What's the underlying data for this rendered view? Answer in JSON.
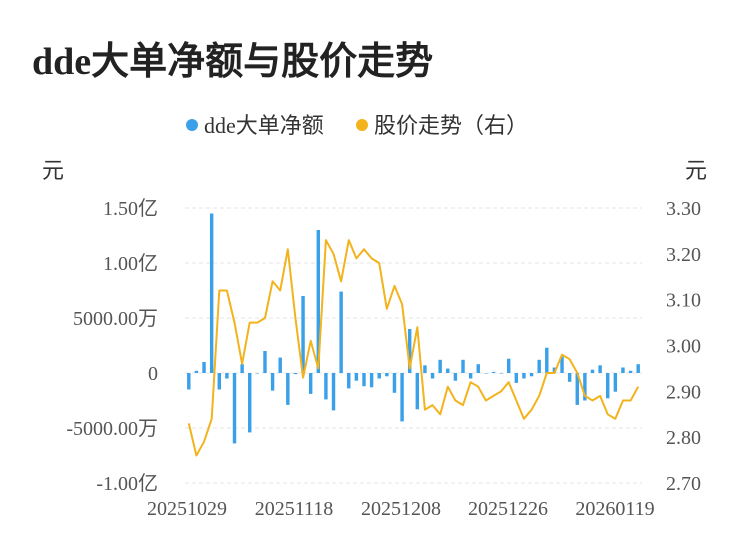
{
  "title": "dde大单净额与股价走势",
  "chart_data": {
    "type": "bar+line",
    "legend": [
      {
        "name": "dde大单净额",
        "color": "#3aa0e8"
      },
      {
        "name": "股价走势（右）",
        "color": "#f2b31c"
      }
    ],
    "left_axis": {
      "unit": "元",
      "ticks": [
        "1.50亿",
        "1.00亿",
        "5000.00万",
        "0",
        "-5000.00万",
        "-1.00亿"
      ],
      "range": [
        -100000000,
        150000000
      ]
    },
    "right_axis": {
      "unit": "元",
      "ticks": [
        "3.30",
        "3.20",
        "3.10",
        "3.00",
        "2.90",
        "2.80",
        "2.70"
      ],
      "range": [
        2.7,
        3.3
      ]
    },
    "x_ticks": [
      "20251029",
      "20251118",
      "20251208",
      "20251226",
      "20260119"
    ],
    "grid": true,
    "bar_values": [
      -15000000,
      2000000,
      10000000,
      145000000,
      -15000000,
      -5000000,
      -64000000,
      8000000,
      -54000000,
      0,
      20000000,
      -16000000,
      14000000,
      -29000000,
      -1000000,
      70000000,
      -19000000,
      130000000,
      -24000000,
      -34000000,
      74000000,
      -14000000,
      -7000000,
      -12000000,
      -13000000,
      -5000000,
      -3000000,
      -18000000,
      -44000000,
      40000000,
      -33000000,
      7000000,
      -5000000,
      12000000,
      4000000,
      -7000000,
      12000000,
      -5000000,
      8000000,
      0,
      1000000,
      0,
      13000000,
      -9000000,
      -5000000,
      -3000000,
      12000000,
      23000000,
      5000000,
      15000000,
      -8000000,
      -29000000,
      -25000000,
      3000000,
      7000000,
      -23000000,
      -17000000,
      5000000,
      2000000,
      8000000
    ],
    "price_values": [
      2.83,
      2.76,
      2.79,
      2.84,
      3.12,
      3.12,
      3.05,
      2.96,
      3.05,
      3.05,
      3.06,
      3.14,
      3.12,
      3.21,
      3.06,
      2.93,
      3.01,
      2.95,
      3.23,
      3.2,
      3.14,
      3.23,
      3.19,
      3.21,
      3.19,
      3.18,
      3.08,
      3.13,
      3.09,
      2.95,
      3.04,
      2.86,
      2.87,
      2.85,
      2.91,
      2.88,
      2.87,
      2.92,
      2.91,
      2.88,
      2.89,
      2.9,
      2.92,
      2.88,
      2.84,
      2.86,
      2.89,
      2.94,
      2.94,
      2.98,
      2.97,
      2.94,
      2.89,
      2.88,
      2.89,
      2.85,
      2.84,
      2.88,
      2.88,
      2.91
    ]
  }
}
